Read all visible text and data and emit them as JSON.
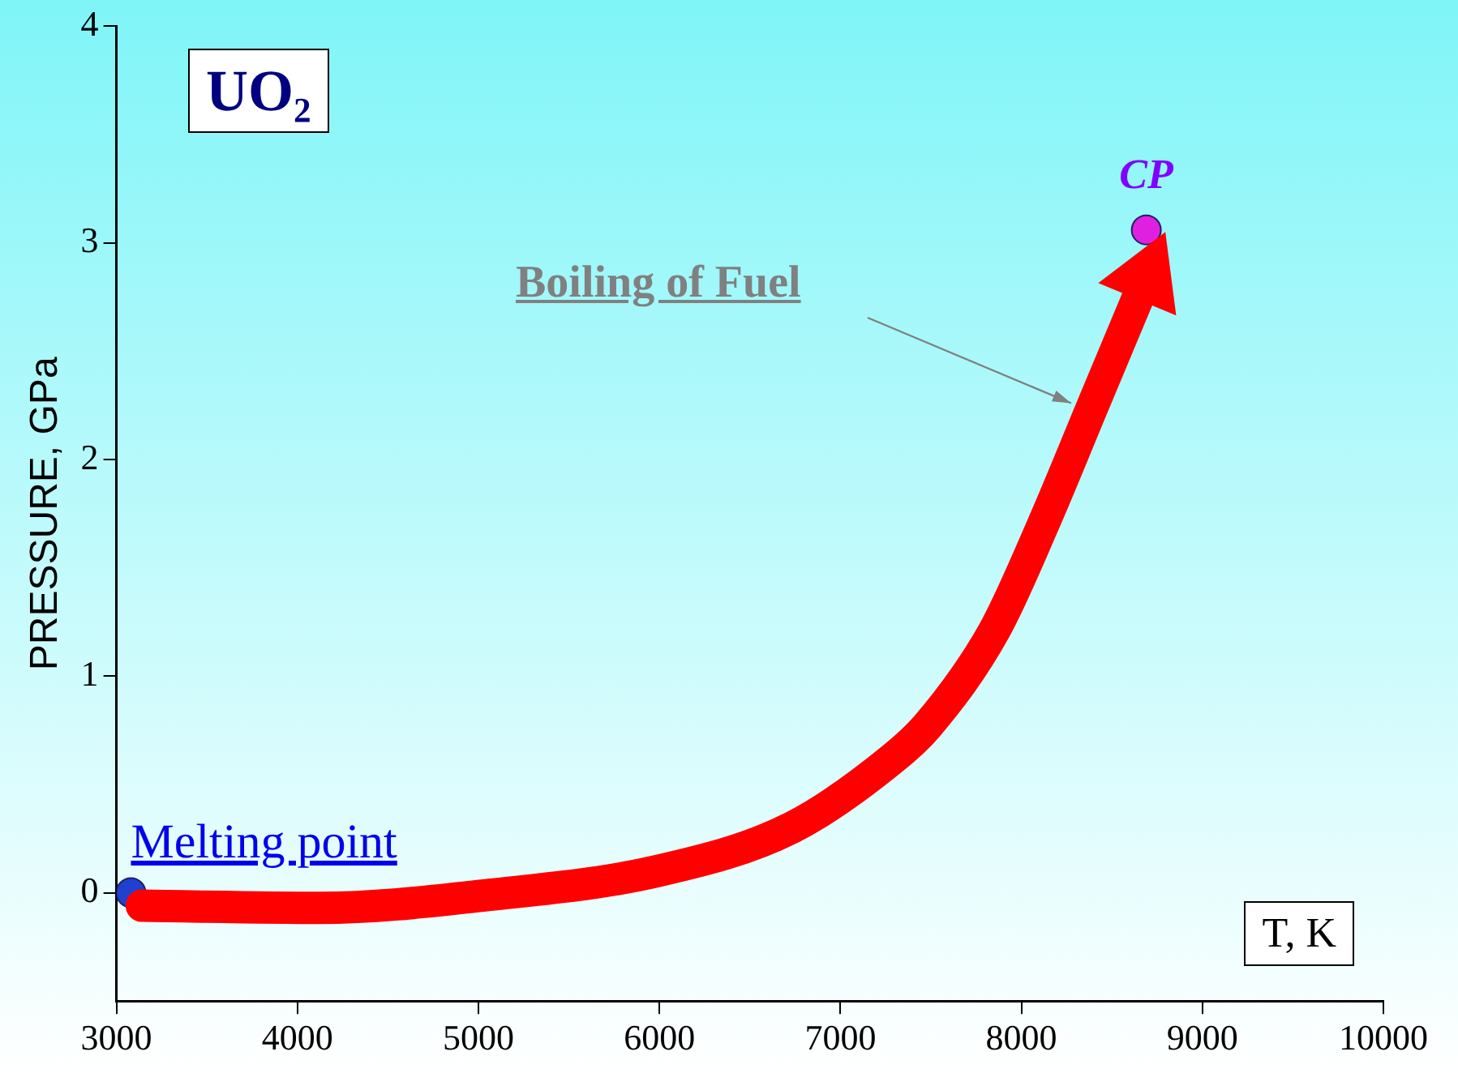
{
  "chart_data": {
    "type": "line",
    "title": "UO₂",
    "xlabel": "T, K",
    "ylabel": "PRESSURE, GPa",
    "xlim": [
      3000,
      10000
    ],
    "xticks": [
      3000,
      4000,
      5000,
      6000,
      7000,
      8000,
      9000,
      10000
    ],
    "ylim": [
      -0.5,
      4
    ],
    "yticks": [
      0,
      1,
      2,
      3,
      4
    ],
    "grid": false,
    "legend": false,
    "line_style": "solid",
    "series": [
      {
        "type": "line",
        "color": "#ff0000",
        "marker": "none",
        "x": [
          3140,
          4130,
          5060,
          5990,
          6730,
          7290,
          7480,
          7850,
          8120,
          8400,
          8640
        ],
        "values": [
          -0.06,
          -0.07,
          -0.01,
          0.1,
          0.3,
          0.62,
          0.77,
          1.21,
          1.7,
          2.26,
          2.74
        ]
      },
      {
        "type": "scatter",
        "color": "#2040d0",
        "marker": "circle",
        "x": [
          3080
        ],
        "values": [
          0
        ]
      },
      {
        "type": "scatter",
        "color": "#e020e0",
        "marker": "circle",
        "x": [
          8690
        ],
        "values": [
          3.06
        ]
      }
    ],
    "annotations": [
      {
        "text": "Melting point",
        "x": 3080,
        "y": 0
      },
      {
        "text": "CP",
        "x": 8690,
        "y": 3.06
      },
      "Boiling of Fuel"
    ]
  }
}
